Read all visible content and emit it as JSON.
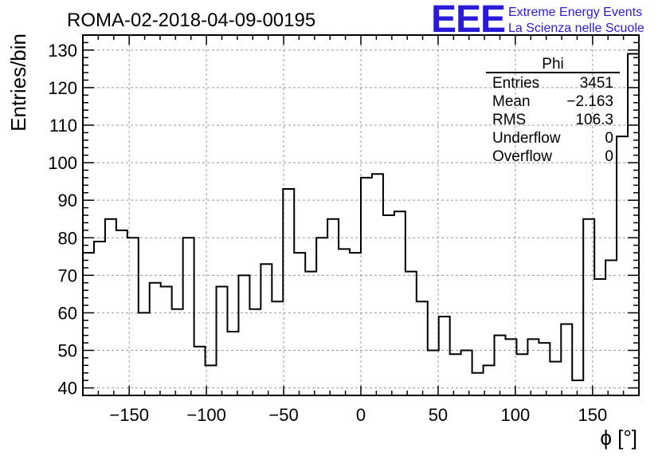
{
  "chart_data": {
    "type": "bar",
    "histogram": true,
    "title": "ROMA-02-2018-04-09-00195",
    "xlabel": "ϕ [°]",
    "ylabel": "Entries/bin",
    "xlim": [
      -180,
      180
    ],
    "ylim": [
      38,
      134
    ],
    "bin_width": 7.2,
    "x_ticks": [
      -150,
      -100,
      -50,
      0,
      50,
      100,
      150
    ],
    "x_tick_labels": [
      "−150",
      "−100",
      "−50",
      "0",
      "50",
      "100",
      "150"
    ],
    "y_ticks": [
      40,
      50,
      60,
      70,
      80,
      90,
      100,
      110,
      120,
      130
    ],
    "y_tick_labels": [
      "40",
      "50",
      "60",
      "70",
      "80",
      "90",
      "100",
      "110",
      "120",
      "130"
    ],
    "grid": true,
    "values": [
      76,
      79,
      85,
      82,
      80,
      60,
      68,
      67,
      61,
      80,
      51,
      46,
      67,
      55,
      70,
      61,
      73,
      63,
      93,
      76,
      71,
      80,
      85,
      77,
      76,
      96,
      97,
      86,
      87,
      71,
      63,
      50,
      59,
      49,
      50,
      44,
      46,
      54,
      53,
      49,
      53,
      52,
      47,
      57,
      42,
      85,
      69,
      74,
      107,
      129
    ],
    "stats_box": {
      "title": "Phi",
      "rows": [
        {
          "label": "Entries",
          "value": "3451"
        },
        {
          "label": "Mean",
          "value": "−2.163"
        },
        {
          "label": "RMS",
          "value": "106.3"
        },
        {
          "label": "Underflow",
          "value": "0"
        },
        {
          "label": "Overflow",
          "value": "0"
        }
      ]
    },
    "colors": {
      "line": "#000000",
      "grid": "#999999",
      "logo": "#2a1bd8"
    }
  },
  "logo": {
    "letters": "EEE",
    "line1": "Extreme Energy Events",
    "line2": "La Scienza nelle Scuole"
  }
}
